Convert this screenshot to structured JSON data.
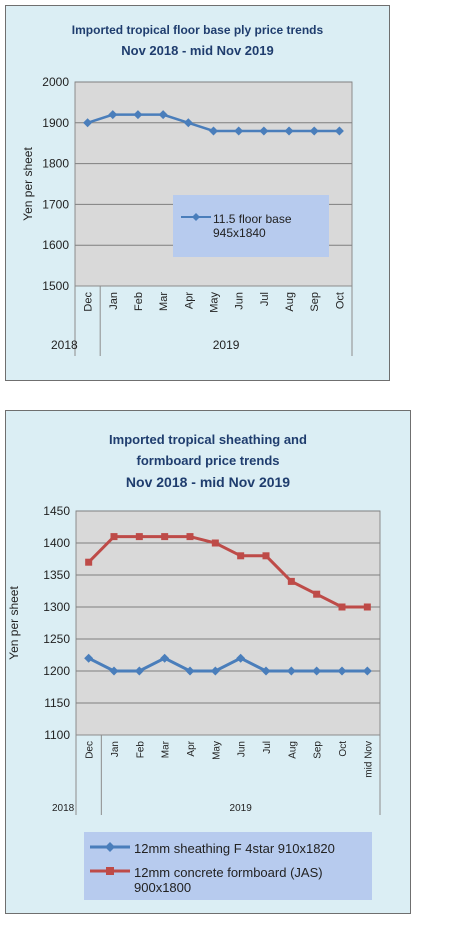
{
  "charts": [
    {
      "title_line1": "Imported tropical floor base ply price trends",
      "title_line2": "Nov 2018 - mid Nov 2019",
      "ylabel": "Yen per sheet",
      "year_left": "2018",
      "year_right": "2019",
      "legend": [
        "11.5 floor base",
        "945x1840"
      ]
    },
    {
      "title_line1": "Imported tropical sheathing and",
      "title_line2": "formboard price trends",
      "title_line3": "Nov 2018 - mid Nov 2019",
      "ylabel": "Yen per sheet",
      "year_left": "2018",
      "year_right": "2019",
      "legend_1": "12mm sheathing F 4star 910x1820",
      "legend_2a": "12mm concrete formboard (JAS)",
      "legend_2b": "900x1800"
    }
  ],
  "chart_data": [
    {
      "type": "line",
      "categories": [
        "Dec",
        "Jan",
        "Feb",
        "Mar",
        "Apr",
        "May",
        "Jun",
        "Jul",
        "Aug",
        "Sep",
        "Oct"
      ],
      "series": [
        {
          "name": "11.5 floor base 945x1840",
          "color": "#4a7ebb",
          "marker": "diamond",
          "values": [
            1900,
            1920,
            1920,
            1920,
            1900,
            1880,
            1880,
            1880,
            1880,
            1880,
            1880
          ]
        }
      ],
      "yticks": [
        1500,
        1600,
        1700,
        1800,
        1900,
        2000
      ],
      "ylim": [
        1500,
        2000
      ],
      "grid": true,
      "legend_position": "inside-lower-right"
    },
    {
      "type": "line",
      "categories": [
        "Dec",
        "Jan",
        "Feb",
        "Mar",
        "Apr",
        "May",
        "Jun",
        "Jul",
        "Aug",
        "Sep",
        "Oct",
        "mid Nov"
      ],
      "series": [
        {
          "name": "12mm sheathing F 4star 910x1820",
          "color": "#4a7ebb",
          "marker": "diamond",
          "values": [
            1220,
            1200,
            1200,
            1220,
            1200,
            1200,
            1220,
            1200,
            1200,
            1200,
            1200,
            1200
          ]
        },
        {
          "name": "12mm concrete formboard (JAS) 900x1800",
          "color": "#be4b48",
          "marker": "square",
          "values": [
            1370,
            1410,
            1410,
            1410,
            1410,
            1400,
            1380,
            1380,
            1340,
            1320,
            1300,
            1300
          ]
        }
      ],
      "yticks": [
        1100,
        1150,
        1200,
        1250,
        1300,
        1350,
        1400,
        1450
      ],
      "ylim": [
        1100,
        1450
      ],
      "grid": true,
      "legend_position": "bottom"
    }
  ]
}
